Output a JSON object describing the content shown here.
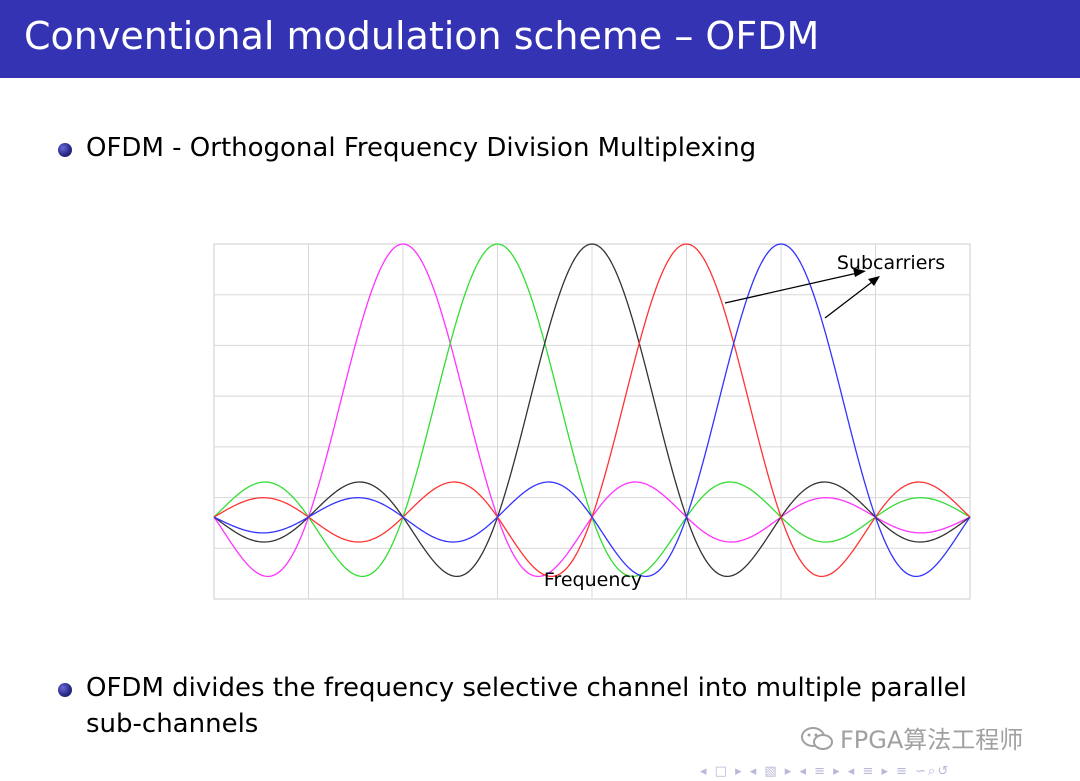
{
  "slide": {
    "title": "Conventional modulation scheme – OFDM",
    "bullets": [
      {
        "line1": "OFDM - Orthogonal Frequency Division Multiplexing",
        "line2": ""
      },
      {
        "line1": "OFDM divides the frequency selective channel into multiple parallel",
        "line2": "sub-channels"
      }
    ]
  },
  "figure": {
    "annotation": "Subcarriers",
    "xlabel": "Frequency"
  },
  "watermark": {
    "text": "FPGA算法工程师",
    "icon": "wechat-icon"
  },
  "nav": {
    "symbols": "◂ □ ▸ ◂ ▧ ▸ ◂ ≡ ▸ ◂ ≡ ▸ ≡ ∽⌕↺"
  },
  "chart_data": {
    "type": "line",
    "title": "",
    "xlabel": "Frequency",
    "ylabel": "",
    "xlim": [
      -4,
      4
    ],
    "ylim": [
      -0.3,
      1.0
    ],
    "grid": true,
    "annotation": "Subcarriers",
    "function": "sinc",
    "series": [
      {
        "center": -2,
        "color": "#ff33ff"
      },
      {
        "center": -1,
        "color": "#33dd33"
      },
      {
        "center": 0,
        "color": "#333333"
      },
      {
        "center": 1,
        "color": "#ff3333"
      },
      {
        "center": 2,
        "color": "#3333ff"
      }
    ],
    "colors": [
      "#ff33ff",
      "#33dd33",
      "#333333",
      "#ff3333",
      "#3333ff"
    ]
  }
}
